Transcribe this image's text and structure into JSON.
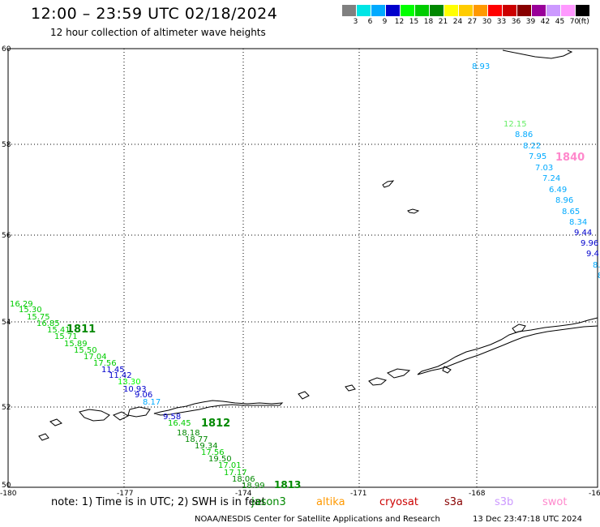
{
  "header": {
    "title": "12:00 – 23:59 UTC 02/18/2024",
    "subtitle": "12 hour collection of altimeter wave heights"
  },
  "color_scale": {
    "unit": "(ft)",
    "bins": [
      {
        "label": "3",
        "color": "#808080"
      },
      {
        "label": "6",
        "color": "#00e5e5"
      },
      {
        "label": "9",
        "color": "#00aaff"
      },
      {
        "label": "12",
        "color": "#0000cc"
      },
      {
        "label": "15",
        "color": "#00ff00"
      },
      {
        "label": "18",
        "color": "#00cc00"
      },
      {
        "label": "21",
        "color": "#008800"
      },
      {
        "label": "24",
        "color": "#ffff00"
      },
      {
        "label": "27",
        "color": "#ffcc00"
      },
      {
        "label": "30",
        "color": "#ff9900"
      },
      {
        "label": "33",
        "color": "#ff0000"
      },
      {
        "label": "36",
        "color": "#cc0000"
      },
      {
        "label": "39",
        "color": "#880000"
      },
      {
        "label": "42",
        "color": "#990099"
      },
      {
        "label": "45",
        "color": "#cc99ff"
      },
      {
        "label": "70",
        "color": "#ff99ff"
      },
      {
        "label": "",
        "color": "#000000"
      }
    ]
  },
  "axes": {
    "lon_ticks": [
      "-180",
      "-177",
      "-174",
      "-171",
      "-168",
      "-16"
    ],
    "lat_ticks": [
      "60",
      "58",
      "56",
      "54",
      "52",
      "50"
    ]
  },
  "tracks": [
    {
      "label": "1840",
      "color": "#ff88cc",
      "points": [
        {
          "v": "8.93",
          "c": "#00aaff"
        },
        {
          "v": "12.15",
          "c": "#66ee66"
        },
        {
          "v": "8.86",
          "c": "#00aaff"
        },
        {
          "v": "8.22",
          "c": "#00aaff"
        },
        {
          "v": "7.95",
          "c": "#00aaff"
        },
        {
          "v": "7.03",
          "c": "#00aaff"
        },
        {
          "v": "7.24",
          "c": "#00aaff"
        },
        {
          "v": "6.49",
          "c": "#00aaff"
        },
        {
          "v": "8.96",
          "c": "#00aaff"
        },
        {
          "v": "8.65",
          "c": "#00aaff"
        },
        {
          "v": "8.34",
          "c": "#00aaff"
        },
        {
          "v": "9.44",
          "c": "#0000cc"
        },
        {
          "v": "9.96",
          "c": "#0000cc"
        },
        {
          "v": "9.4",
          "c": "#0000cc"
        },
        {
          "v": "8.",
          "c": "#00aaff"
        },
        {
          "v": "8",
          "c": "#00aaff"
        }
      ]
    },
    {
      "label": "1811",
      "color": "#008800",
      "points": [
        {
          "v": "16.29",
          "c": "#00cc00"
        },
        {
          "v": "15.30",
          "c": "#00cc00"
        },
        {
          "v": "15.75",
          "c": "#00cc00"
        },
        {
          "v": "16.85",
          "c": "#00cc00"
        },
        {
          "v": "15.41",
          "c": "#00cc00"
        },
        {
          "v": "15.71",
          "c": "#00cc00"
        },
        {
          "v": "15.89",
          "c": "#00cc00"
        },
        {
          "v": "15.50",
          "c": "#00cc00"
        },
        {
          "v": "17.04",
          "c": "#00cc00"
        },
        {
          "v": "17.56",
          "c": "#00cc00"
        },
        {
          "v": "11.45",
          "c": "#0000cc"
        },
        {
          "v": "11.42",
          "c": "#0000cc"
        },
        {
          "v": "13.30",
          "c": "#00ff00"
        },
        {
          "v": "10.93",
          "c": "#0000cc"
        },
        {
          "v": "9.06",
          "c": "#0000cc"
        },
        {
          "v": "8.17",
          "c": "#00aaff"
        },
        {
          "v": "9.58",
          "c": "#0000cc"
        }
      ]
    },
    {
      "label": "1812",
      "color": "#008800",
      "points": [
        {
          "v": "16.45",
          "c": "#00cc00"
        },
        {
          "v": "18.18",
          "c": "#008800"
        },
        {
          "v": "18.77",
          "c": "#008800"
        },
        {
          "v": "19.34",
          "c": "#008800"
        },
        {
          "v": "17.56",
          "c": "#00cc00"
        },
        {
          "v": "19.50",
          "c": "#008800"
        },
        {
          "v": "17.01",
          "c": "#00cc00"
        },
        {
          "v": "17.17",
          "c": "#00cc00"
        },
        {
          "v": "18.06",
          "c": "#008800"
        },
        {
          "v": "18.99",
          "c": "#008800"
        }
      ]
    },
    {
      "label": "1813",
      "color": "#008800",
      "points": []
    }
  ],
  "footer": {
    "note": "note: 1) Time is in UTC; 2) SWH is in feet",
    "missions": [
      {
        "name": "jason3",
        "color": "#008800"
      },
      {
        "name": "altika",
        "color": "#ff9900"
      },
      {
        "name": "cryosat",
        "color": "#cc0000"
      },
      {
        "name": "s3a",
        "color": "#880000"
      },
      {
        "name": "s3b",
        "color": "#cc99ff"
      },
      {
        "name": "swot",
        "color": "#ff88cc"
      }
    ],
    "credit": "NOAA/NESDIS Center for Satellite Applications and Research",
    "timestamp": "13 Dec 23:47:18 UTC 2024"
  }
}
